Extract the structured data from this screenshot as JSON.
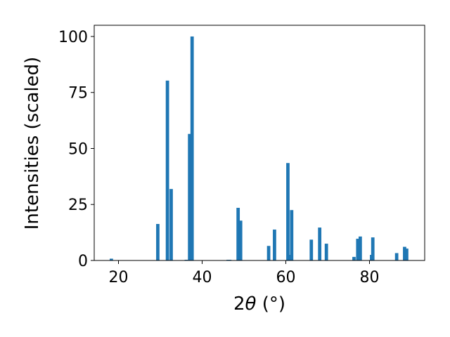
{
  "chart_data": {
    "type": "bar",
    "xlabel_prefix": "2",
    "xlabel_symbol": "θ",
    "xlabel_suffix": " (°)",
    "ylabel": "Intensities (scaled)",
    "xlim": [
      14.2,
      93.2
    ],
    "ylim": [
      0,
      105
    ],
    "xticks": [
      20,
      40,
      60,
      80
    ],
    "yticks": [
      0,
      25,
      50,
      75,
      100
    ],
    "bar_width_deg": 0.8,
    "color": "#1f77b4",
    "grid": false,
    "x": [
      18.3,
      29.4,
      31.7,
      32.6,
      36.2,
      37.0,
      37.6,
      46.2,
      46.6,
      48.6,
      49.2,
      55.9,
      57.3,
      60.5,
      61.1,
      61.4,
      66.1,
      68.1,
      69.7,
      76.3,
      77.2,
      77.8,
      80.5,
      80.8,
      86.5,
      88.4,
      88.9
    ],
    "values": [
      0.8,
      16.3,
      80.3,
      31.9,
      0.3,
      56.5,
      100,
      0.3,
      0.3,
      23.5,
      17.8,
      6.5,
      13.8,
      43.5,
      2.5,
      22.5,
      9.3,
      14.7,
      7.5,
      1.6,
      9.7,
      10.7,
      2.5,
      10.3,
      3.3,
      6.1,
      5.3
    ]
  }
}
